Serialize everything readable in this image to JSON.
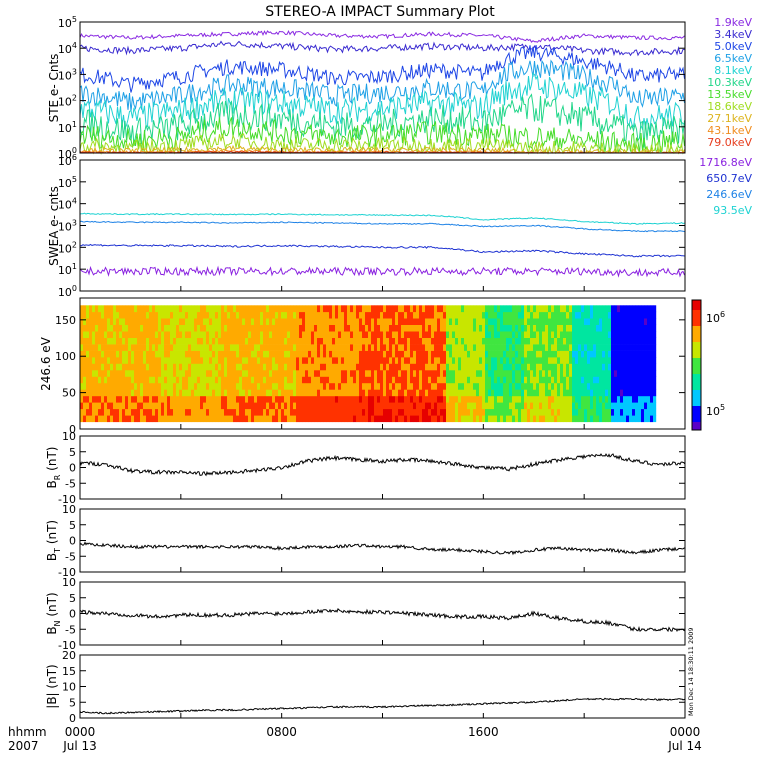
{
  "title": "STEREO-A IMPACT Summary Plot",
  "footer": {
    "axis_label": "hhmm",
    "year": "2007",
    "ticks": [
      {
        "time": "0000",
        "date": "Jul 13"
      },
      {
        "time": "0800",
        "date": ""
      },
      {
        "time": "1600",
        "date": ""
      },
      {
        "time": "0000",
        "date": "Jul 14"
      }
    ],
    "timestamp": "Mon Dec 14 18:30:11 2009"
  },
  "colors": {
    "ste_legend": [
      "#8a2be2",
      "#3a2bd0",
      "#1e46e6",
      "#1ea0e6",
      "#20d2d2",
      "#22d68a",
      "#46dc2a",
      "#a0dc20",
      "#dcb41e",
      "#f08c1e",
      "#e63c1e"
    ],
    "swea_legend": [
      "#8a22e0",
      "#1e32d2",
      "#1e82e6",
      "#1ed2d2"
    ],
    "spectrogram_scale": [
      "#5a00c8",
      "#0000ff",
      "#00c8ff",
      "#00e6a0",
      "#40e640",
      "#c8e600",
      "#ffaa00",
      "#ff3200",
      "#e60000"
    ]
  },
  "chart_data": [
    {
      "type": "line",
      "panel": "ste",
      "ylabel": "STE e- Cnts",
      "yscale": "log",
      "ylim": [
        1,
        100000
      ],
      "yticks": [
        "10^0",
        "10^1",
        "10^2",
        "10^3",
        "10^4",
        "10^5"
      ],
      "legend": [
        "1.9keV",
        "3.4keV",
        "5.0keV",
        "6.5keV",
        "8.1keV",
        "10.3keV",
        "13.5keV",
        "18.6keV",
        "27.1keV",
        "43.1keV",
        "79.0keV"
      ],
      "x": [
        0,
        2,
        4,
        6,
        8,
        10,
        12,
        14,
        16,
        18,
        20,
        22,
        24
      ],
      "series": [
        {
          "name": "1.9keV",
          "values": [
            30000,
            25000,
            30000,
            35000,
            40000,
            30000,
            28000,
            35000,
            30000,
            18000,
            30000,
            25000,
            25000
          ]
        },
        {
          "name": "3.4keV",
          "values": [
            10000,
            8000,
            10000,
            15000,
            12000,
            9000,
            10000,
            12000,
            10000,
            12000,
            8000,
            7000,
            8000
          ]
        },
        {
          "name": "5.0keV",
          "values": [
            1000,
            400,
            800,
            2000,
            1500,
            700,
            800,
            1500,
            1000,
            7000,
            3000,
            800,
            1000
          ]
        },
        {
          "name": "6.5keV",
          "values": [
            200,
            80,
            150,
            400,
            300,
            150,
            200,
            300,
            200,
            2000,
            800,
            100,
            150
          ]
        },
        {
          "name": "8.1keV",
          "values": [
            50,
            20,
            40,
            100,
            80,
            40,
            50,
            80,
            50,
            400,
            150,
            20,
            30
          ]
        },
        {
          "name": "10.3keV",
          "values": [
            15,
            6,
            10,
            30,
            20,
            10,
            12,
            20,
            15,
            50,
            20,
            5,
            8
          ]
        },
        {
          "name": "13.5keV",
          "values": [
            5,
            3,
            4,
            10,
            6,
            4,
            5,
            6,
            5,
            4,
            3,
            2,
            3
          ]
        },
        {
          "name": "18.6keV",
          "values": [
            2,
            1.5,
            2,
            3,
            2,
            2,
            2,
            2,
            2,
            1.5,
            1.5,
            1.2,
            1.5
          ]
        },
        {
          "name": "27.1keV",
          "values": [
            1.3,
            1.2,
            1.3,
            1.5,
            1.3,
            1.3,
            1.3,
            1.3,
            1.3,
            1.1,
            1.1,
            1.1,
            1.1
          ]
        },
        {
          "name": "43.1keV",
          "values": [
            1.1,
            1.1,
            1.1,
            1.2,
            1.1,
            1.1,
            1.1,
            1.1,
            1.1,
            1,
            1,
            1,
            1
          ]
        },
        {
          "name": "79.0keV",
          "values": [
            1.05,
            1.05,
            1.05,
            1.1,
            1.05,
            1.05,
            1.05,
            1.05,
            1.05,
            1,
            1,
            1,
            1
          ]
        }
      ]
    },
    {
      "type": "line",
      "panel": "swea",
      "ylabel": "SWEA e- cnts",
      "yscale": "log",
      "ylim": [
        1,
        1000000
      ],
      "yticks": [
        "10^0",
        "10^1",
        "10^2",
        "10^3",
        "10^4",
        "10^5",
        "10^6"
      ],
      "legend": [
        "1716.8eV",
        "650.7eV",
        "246.6eV",
        "93.5eV"
      ],
      "x": [
        0,
        2,
        4,
        6,
        8,
        10,
        12,
        14,
        16,
        18,
        20,
        22,
        24
      ],
      "series": [
        {
          "name": "1716.8eV",
          "values": [
            8,
            8,
            8,
            8,
            8,
            8,
            8,
            8,
            8,
            8,
            8,
            7,
            7
          ]
        },
        {
          "name": "650.7eV",
          "values": [
            130,
            120,
            120,
            110,
            120,
            110,
            100,
            100,
            60,
            70,
            50,
            40,
            40
          ]
        },
        {
          "name": "246.6eV",
          "values": [
            1500,
            1400,
            1400,
            1300,
            1400,
            1300,
            1200,
            1200,
            900,
            1000,
            700,
            550,
            550
          ]
        },
        {
          "name": "93.5eV",
          "values": [
            3500,
            3300,
            3300,
            3200,
            3300,
            3100,
            3000,
            2900,
            1800,
            2200,
            1500,
            1200,
            1300
          ]
        }
      ]
    },
    {
      "type": "heatmap",
      "panel": "pad",
      "ylabel": "246.6 eV",
      "ylim": [
        0,
        180
      ],
      "yticks": [
        0,
        50,
        100,
        150
      ],
      "colorbar": {
        "ticks": [
          "10^5",
          "10^6"
        ],
        "scale": "log"
      },
      "x_start": 0,
      "x_end": 22.8,
      "segments": [
        {
          "from": 0,
          "to": 3,
          "level": 0.72
        },
        {
          "from": 3,
          "to": 5.5,
          "level": 0.67
        },
        {
          "from": 5.5,
          "to": 8.5,
          "level": 0.72
        },
        {
          "from": 8.5,
          "to": 11,
          "level": 0.78
        },
        {
          "from": 11,
          "to": 14.5,
          "level": 0.83
        },
        {
          "from": 14.5,
          "to": 16,
          "level": 0.6
        },
        {
          "from": 16,
          "to": 17.5,
          "level": 0.45
        },
        {
          "from": 17.5,
          "to": 19.5,
          "level": 0.55
        },
        {
          "from": 19.5,
          "to": 21,
          "level": 0.35
        },
        {
          "from": 21,
          "to": 22.8,
          "level": 0.12
        }
      ]
    },
    {
      "type": "line",
      "panel": "br",
      "ylabel": "B_R (nT)",
      "ylim": [
        -10,
        10
      ],
      "yticks": [
        -10,
        -5,
        0,
        5,
        10
      ],
      "x": [
        0,
        1,
        2,
        3,
        4,
        5,
        6,
        7,
        8,
        9,
        10,
        11,
        12,
        13,
        14,
        15,
        16,
        17,
        18,
        19,
        20,
        21,
        22,
        23,
        24
      ],
      "values": [
        1.5,
        1,
        -1,
        -1.5,
        -1.5,
        -2,
        -1.5,
        -1,
        0,
        2,
        3,
        2.5,
        2,
        2.5,
        2,
        1,
        0,
        -0.5,
        1,
        2.5,
        3.5,
        4,
        2,
        1,
        1.5
      ]
    },
    {
      "type": "line",
      "panel": "bt",
      "ylabel": "B_T (nT)",
      "ylim": [
        -10,
        10
      ],
      "yticks": [
        -10,
        -5,
        0,
        5,
        10
      ],
      "x": [
        0,
        1,
        2,
        3,
        4,
        5,
        6,
        7,
        8,
        9,
        10,
        11,
        12,
        13,
        14,
        15,
        16,
        17,
        18,
        19,
        20,
        21,
        22,
        23,
        24
      ],
      "values": [
        -1,
        -1.5,
        -2,
        -2,
        -2,
        -2,
        -2,
        -2,
        -2.5,
        -2,
        -2,
        -1.5,
        -2,
        -2,
        -3,
        -3,
        -3.5,
        -4,
        -3,
        -2.5,
        -3,
        -3,
        -4,
        -3,
        -2.5
      ]
    },
    {
      "type": "line",
      "panel": "bn",
      "ylabel": "B_N (nT)",
      "ylim": [
        -10,
        10
      ],
      "yticks": [
        -10,
        -5,
        0,
        5,
        10
      ],
      "x": [
        0,
        1,
        2,
        3,
        4,
        5,
        6,
        7,
        8,
        9,
        10,
        11,
        12,
        13,
        14,
        15,
        16,
        17,
        18,
        19,
        20,
        21,
        22,
        23,
        24
      ],
      "values": [
        0.5,
        0,
        -0.5,
        -1,
        -0.5,
        -0.5,
        -0.5,
        0,
        0,
        0.5,
        1,
        0.5,
        0.5,
        0,
        -0.5,
        -1,
        -1,
        -1.5,
        0,
        -1.5,
        -2.5,
        -3,
        -5,
        -5,
        -5
      ]
    },
    {
      "type": "line",
      "panel": "bmag",
      "ylabel": "|B| (nT)",
      "ylim": [
        0,
        20
      ],
      "yticks": [
        0,
        5,
        10,
        15,
        20
      ],
      "x": [
        0,
        1,
        2,
        3,
        4,
        5,
        6,
        7,
        8,
        9,
        10,
        11,
        12,
        13,
        14,
        15,
        16,
        17,
        18,
        19,
        20,
        21,
        22,
        23,
        24
      ],
      "values": [
        2,
        1.5,
        1.8,
        2,
        2.2,
        2.5,
        2.5,
        2.8,
        3,
        3.2,
        3.5,
        3.5,
        3.5,
        3.8,
        4,
        4.2,
        4.5,
        4.8,
        5,
        5.5,
        6,
        6,
        6,
        5.8,
        6
      ]
    }
  ]
}
